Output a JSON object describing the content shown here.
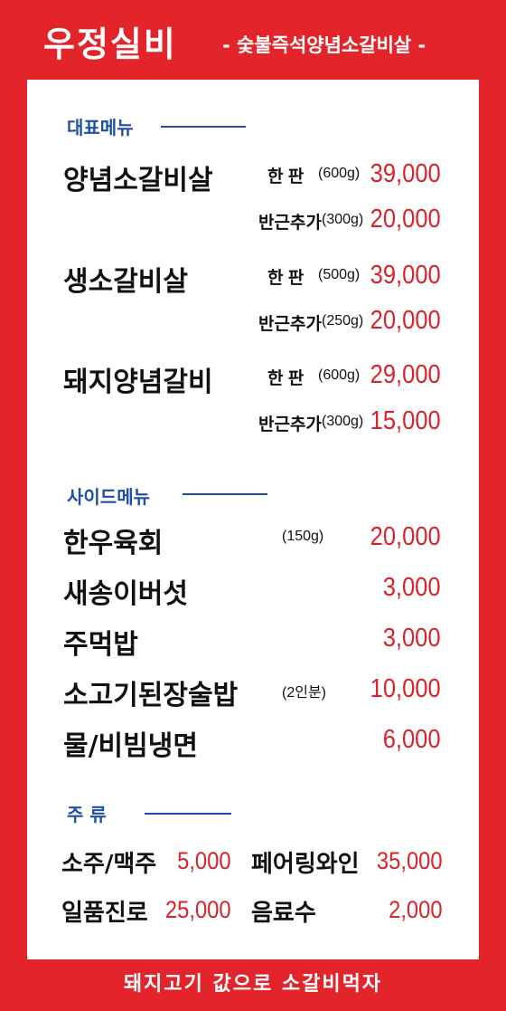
{
  "header": {
    "brand": "우정실비",
    "tagline": "- 숯불즉석양념소갈비살 -"
  },
  "signature": {
    "title": "대표메뉴",
    "items": [
      {
        "name": "양념소갈비살",
        "main_opt": "한 판",
        "main_weight": "(600g)",
        "main_price": "39,000",
        "half_opt": "반근추가",
        "half_weight": "(300g)",
        "half_price": "20,000"
      },
      {
        "name": "생소갈비살",
        "main_opt": "한 판",
        "main_weight": "(500g)",
        "main_price": "39,000",
        "half_opt": "반근추가",
        "half_weight": "(250g)",
        "half_price": "20,000"
      },
      {
        "name": "돼지양념갈비",
        "main_opt": "한 판",
        "main_weight": "(600g)",
        "main_price": "29,000",
        "half_opt": "반근추가",
        "half_weight": "(300g)",
        "half_price": "15,000"
      }
    ]
  },
  "side": {
    "title": "사이드메뉴",
    "items": [
      {
        "name": "한우육회",
        "note": "(150g)",
        "price": "20,000"
      },
      {
        "name": "새송이버섯",
        "note": "",
        "price": "3,000"
      },
      {
        "name": "주먹밥",
        "note": "",
        "price": "3,000"
      },
      {
        "name": "소고기된장술밥",
        "note": "(2인분)",
        "price": "10,000"
      },
      {
        "name": "물/비빔냉면",
        "note": "",
        "price": "6,000"
      }
    ]
  },
  "drinks": {
    "title": "주  류",
    "items": [
      {
        "name": "소주/맥주",
        "price": "5,000"
      },
      {
        "name": "페어링와인",
        "price": "35,000"
      },
      {
        "name": "일품진로",
        "price": "25,000"
      },
      {
        "name": "음료수",
        "price": "2,000"
      }
    ]
  },
  "footer": {
    "slogan": "돼지고기 값으로 소갈비먹자"
  },
  "colors": {
    "frame": "#e3242b",
    "price": "#d8232a",
    "section": "#1f4fa3"
  }
}
